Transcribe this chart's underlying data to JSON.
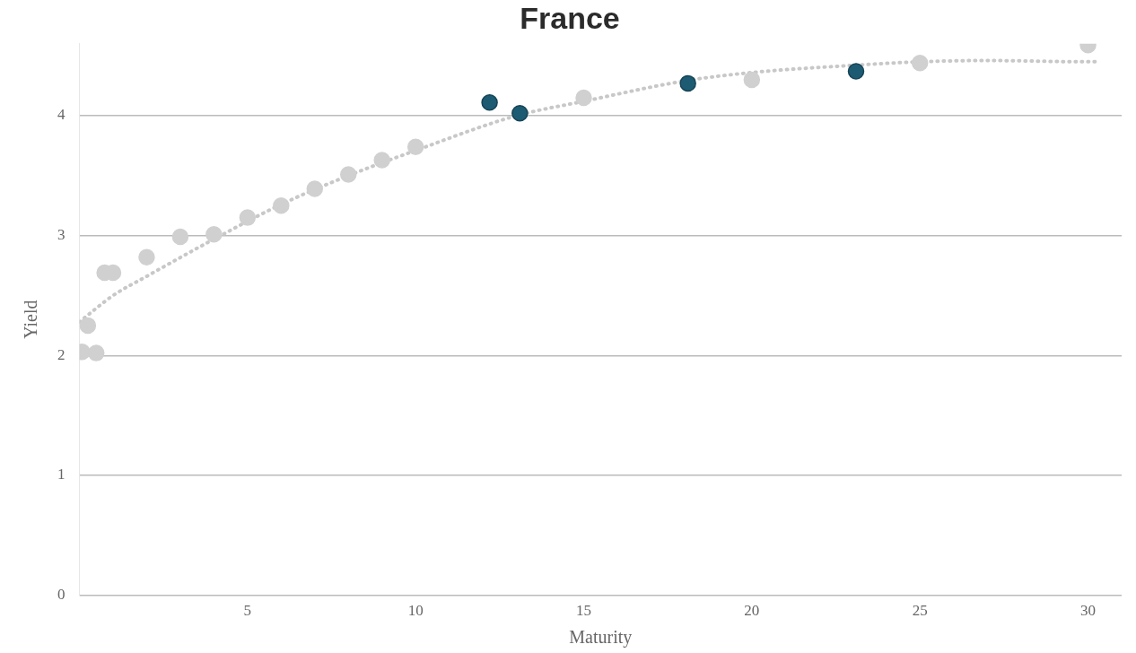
{
  "chart_data": {
    "type": "scatter",
    "title": "France",
    "xlabel": "Maturity",
    "ylabel": "Yield",
    "xlim": [
      0,
      31
    ],
    "ylim": [
      0,
      4.6
    ],
    "xticks": [
      5,
      10,
      15,
      20,
      25,
      30
    ],
    "yticks": [
      0,
      1,
      2,
      3,
      4
    ],
    "grid": "y",
    "legend": false,
    "marker": "circle",
    "series": [
      {
        "color": "#d0d0d0",
        "x": [
          0.08,
          0.25,
          0.5,
          0.75,
          1,
          2,
          3,
          4,
          5,
          6,
          7,
          8,
          9,
          10,
          15,
          20,
          25,
          30
        ],
        "values": [
          2.03,
          2.25,
          2.02,
          2.69,
          2.69,
          2.82,
          2.99,
          3.01,
          3.15,
          3.25,
          3.39,
          3.51,
          3.63,
          3.74,
          4.15,
          4.3,
          4.44,
          4.59
        ]
      },
      {
        "color": "#1d5b73",
        "x": [
          12.2,
          13.1,
          18.1,
          23.1
        ],
        "values": [
          4.11,
          4.02,
          4.27,
          4.37
        ]
      },
      {
        "type": "line",
        "line_style": "dotted",
        "marker": "none",
        "color": "#c8c8c8",
        "x": [
          0,
          1,
          2,
          4,
          6,
          8,
          10,
          13,
          15,
          18,
          20,
          23,
          25,
          27,
          30,
          30.3
        ],
        "values": [
          2.28,
          2.5,
          2.66,
          2.97,
          3.26,
          3.5,
          3.71,
          4.0,
          4.12,
          4.29,
          4.36,
          4.42,
          4.45,
          4.46,
          4.45,
          4.45
        ]
      }
    ]
  }
}
